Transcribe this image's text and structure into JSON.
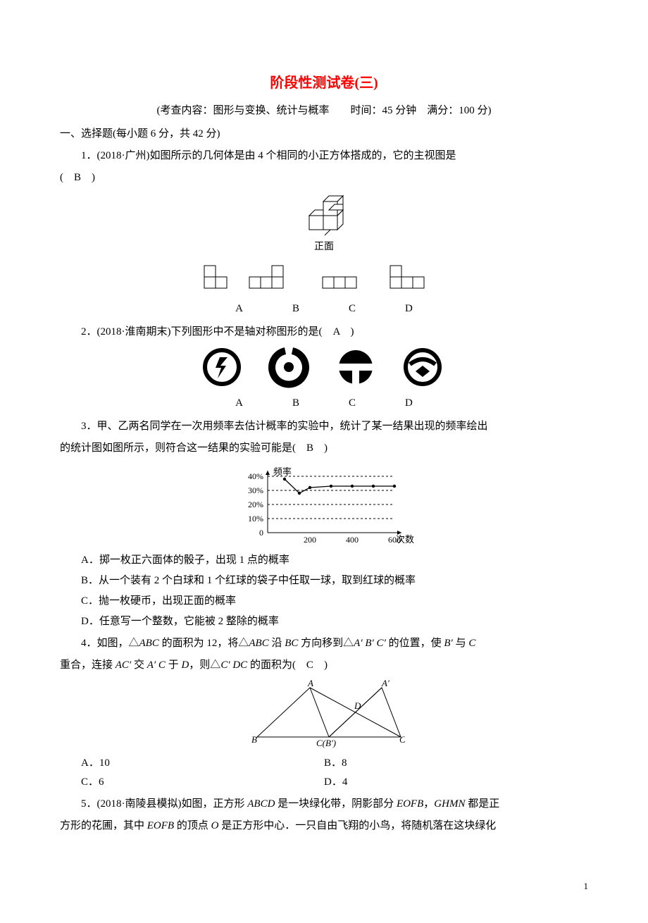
{
  "title": "阶段性测试卷(三)",
  "meta": "(考查内容：图形与变换、统计与概率　　时间：45 分钟　满分：100 分)",
  "section1": "一、选择题(每小题 6 分，共 42 分)",
  "q1": {
    "text_a": "1．(2018·广州)如图所示的几何体是由 4 个相同的小正方体搭成的，它的主视图是",
    "text_b": "(　B　)",
    "front_label": "正面",
    "opts": {
      "A": "A",
      "B": "B",
      "C": "C",
      "D": "D"
    }
  },
  "q2": {
    "text": "2．(2018·淮南期末)下列图形中不是轴对称图形的是(　A　)",
    "opts": {
      "A": "A",
      "B": "B",
      "C": "C",
      "D": "D"
    }
  },
  "q3": {
    "line1": "3．甲、乙两名同学在一次用频率去估计概率的实验中，统计了某一结果出现的频率绘出",
    "line2": "的统计图如图所示，则符合这一结果的实验可能是(　B　)",
    "chart": {
      "type": "line",
      "ylabel": "频率",
      "xlabel": "次数",
      "x_ticks": [
        "200",
        "400",
        "600"
      ],
      "y_ticks": [
        "10%",
        "20%",
        "30%",
        "40%"
      ],
      "points_x": [
        80,
        150,
        200,
        300,
        400,
        500,
        600
      ],
      "points_y": [
        38,
        28,
        32,
        33,
        33,
        33,
        33
      ],
      "grid_color": "#000",
      "line_color": "#000",
      "background_color": "#ffffff"
    },
    "A": "A．掷一枚正六面体的骰子，出现 1 点的概率",
    "B": "B．从一个装有 2 个白球和 1 个红球的袋子中任取一球，取到红球的概率",
    "C": "C．抛一枚硬币，出现正面的概率",
    "D": "D．任意写一个整数，它能被 2 整除的概率"
  },
  "q4": {
    "line1_a": "4．如图，△",
    "line1_b": " 的面积为 12，将△",
    "line1_c": " 沿 ",
    "line1_d": " 方向移到△",
    "line1_e": " 的位置，使 ",
    "line1_f": " 与 ",
    "line2_a": "重合，连接 ",
    "line2_b": " 交 ",
    "line2_c": " 于 ",
    "line2_d": "，则△",
    "line2_e": " 的面积为(　C　)",
    "ABC": "ABC",
    "BC": "BC",
    "A1B1C1": "A′ B′ C′",
    "B1": "B′",
    "C": "C",
    "AC1": "AC′",
    "A1C": "A′ C",
    "D": "D",
    "C1DC": "C′ DC",
    "labels": {
      "A": "A",
      "A1": "A′",
      "B": "B",
      "C": "C(B′)",
      "C1": "C′",
      "D": "D"
    },
    "optA": "A．10",
    "optB": "B．8",
    "optC": "C．6",
    "optD": "D．4"
  },
  "q5": {
    "line1_a": "5．(2018·南陵县模拟)如图，正方形 ",
    "line1_b": " 是一块绿化带，阴影部分 ",
    "line1_c": "，",
    "line1_d": " 都是正",
    "ABCD": "ABCD",
    "EOFB": "EOFB",
    "GHMN": "GHMN",
    "line2_a": "方形的花圃，其中 ",
    "line2_b": " 的顶点 ",
    "line2_c": " 是正方形中心．一只自由飞翔的小鸟，将随机落在这块绿化",
    "O": "O"
  },
  "page_num": "1"
}
